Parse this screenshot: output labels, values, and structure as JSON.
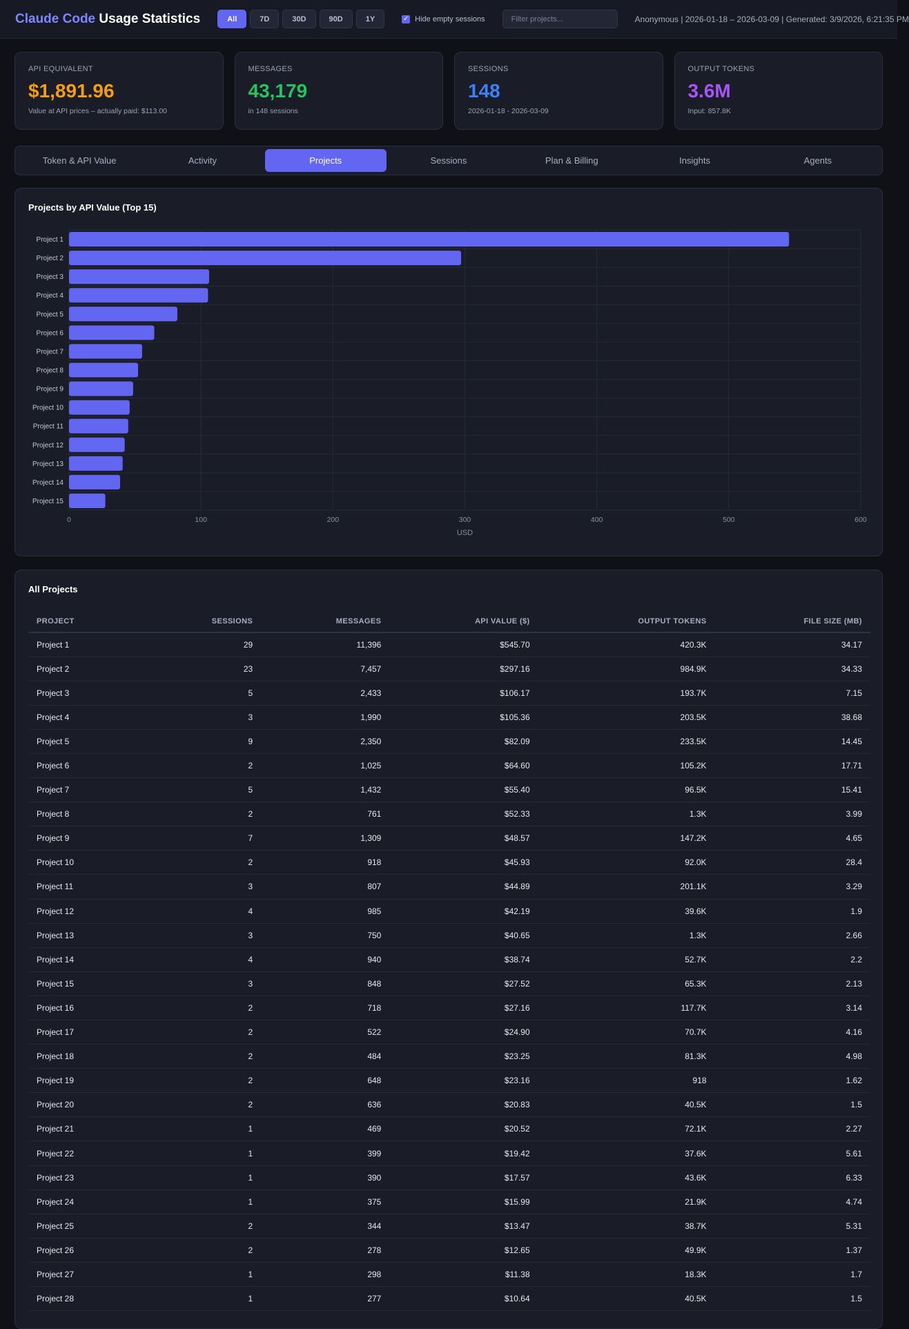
{
  "header": {
    "brand": "Claude Code",
    "title_rest": " Usage Statistics",
    "ranges": [
      "All",
      "7D",
      "30D",
      "90D",
      "1Y"
    ],
    "active_range": "All",
    "hide_empty_label": "Hide empty sessions",
    "hide_empty_checked": true,
    "filter_placeholder": "Filter projects...",
    "meta": "Anonymous | 2026-01-18 – 2026-03-09 | Generated: 3/9/2026, 6:21:35 PM"
  },
  "cards": [
    {
      "label": "API EQUIVALENT",
      "value": "$1,891.96",
      "sub": "Value at API prices – actually paid: $113.00",
      "color": "#f59e0b"
    },
    {
      "label": "MESSAGES",
      "value": "43,179",
      "sub": "in 148 sessions",
      "color": "#22c55e"
    },
    {
      "label": "SESSIONS",
      "value": "148",
      "sub": "2026-01-18 - 2026-03-09",
      "color": "#3b82f6"
    },
    {
      "label": "OUTPUT TOKENS",
      "value": "3.6M",
      "sub": "Input: 857.8K",
      "color": "#a855f7"
    }
  ],
  "tabs": [
    "Token & API Value",
    "Activity",
    "Projects",
    "Sessions",
    "Plan & Billing",
    "Insights",
    "Agents"
  ],
  "active_tab": "Projects",
  "chart_title": "Projects by API Value (Top 15)",
  "chart_data": {
    "type": "bar",
    "orientation": "horizontal",
    "title": "Projects by API Value (Top 15)",
    "categories": [
      "Project 1",
      "Project 2",
      "Project 3",
      "Project 4",
      "Project 5",
      "Project 6",
      "Project 7",
      "Project 8",
      "Project 9",
      "Project 10",
      "Project 11",
      "Project 12",
      "Project 13",
      "Project 14",
      "Project 15"
    ],
    "values": [
      545.7,
      297.16,
      106.17,
      105.36,
      82.09,
      64.6,
      55.4,
      52.33,
      48.57,
      45.93,
      44.89,
      42.19,
      40.65,
      38.74,
      27.52
    ],
    "xlabel": "USD",
    "ylabel": "",
    "xlim": [
      0,
      600
    ],
    "xticks": [
      0,
      100,
      200,
      300,
      400,
      500,
      600
    ],
    "grid": true,
    "bar_color": "#6366f1"
  },
  "table": {
    "title": "All Projects",
    "columns": [
      "PROJECT",
      "SESSIONS",
      "MESSAGES",
      "API VALUE ($)",
      "OUTPUT TOKENS",
      "FILE SIZE (MB)"
    ],
    "rows": [
      [
        "Project 1",
        "29",
        "11,396",
        "$545.70",
        "420.3K",
        "34.17"
      ],
      [
        "Project 2",
        "23",
        "7,457",
        "$297.16",
        "984.9K",
        "34.33"
      ],
      [
        "Project 3",
        "5",
        "2,433",
        "$106.17",
        "193.7K",
        "7.15"
      ],
      [
        "Project 4",
        "3",
        "1,990",
        "$105.36",
        "203.5K",
        "38.68"
      ],
      [
        "Project 5",
        "9",
        "2,350",
        "$82.09",
        "233.5K",
        "14.45"
      ],
      [
        "Project 6",
        "2",
        "1,025",
        "$64.60",
        "105.2K",
        "17.71"
      ],
      [
        "Project 7",
        "5",
        "1,432",
        "$55.40",
        "96.5K",
        "15.41"
      ],
      [
        "Project 8",
        "2",
        "761",
        "$52.33",
        "1.3K",
        "3.99"
      ],
      [
        "Project 9",
        "7",
        "1,309",
        "$48.57",
        "147.2K",
        "4.65"
      ],
      [
        "Project 10",
        "2",
        "918",
        "$45.93",
        "92.0K",
        "28.4"
      ],
      [
        "Project 11",
        "3",
        "807",
        "$44.89",
        "201.1K",
        "3.29"
      ],
      [
        "Project 12",
        "4",
        "985",
        "$42.19",
        "39.6K",
        "1.9"
      ],
      [
        "Project 13",
        "3",
        "750",
        "$40.65",
        "1.3K",
        "2.66"
      ],
      [
        "Project 14",
        "4",
        "940",
        "$38.74",
        "52.7K",
        "2.2"
      ],
      [
        "Project 15",
        "3",
        "848",
        "$27.52",
        "65.3K",
        "2.13"
      ],
      [
        "Project 16",
        "2",
        "718",
        "$27.16",
        "117.7K",
        "3.14"
      ],
      [
        "Project 17",
        "2",
        "522",
        "$24.90",
        "70.7K",
        "4.16"
      ],
      [
        "Project 18",
        "2",
        "484",
        "$23.25",
        "81.3K",
        "4.98"
      ],
      [
        "Project 19",
        "2",
        "648",
        "$23.16",
        "918",
        "1.62"
      ],
      [
        "Project 20",
        "2",
        "636",
        "$20.83",
        "40.5K",
        "1.5"
      ],
      [
        "Project 21",
        "1",
        "469",
        "$20.52",
        "72.1K",
        "2.27"
      ],
      [
        "Project 22",
        "1",
        "399",
        "$19.42",
        "37.6K",
        "5.61"
      ],
      [
        "Project 23",
        "1",
        "390",
        "$17.57",
        "43.6K",
        "6.33"
      ],
      [
        "Project 24",
        "1",
        "375",
        "$15.99",
        "21.9K",
        "4.74"
      ],
      [
        "Project 25",
        "2",
        "344",
        "$13.47",
        "38.7K",
        "5.31"
      ],
      [
        "Project 26",
        "2",
        "278",
        "$12.65",
        "49.9K",
        "1.37"
      ],
      [
        "Project 27",
        "1",
        "298",
        "$11.38",
        "18.3K",
        "1.7"
      ],
      [
        "Project 28",
        "1",
        "277",
        "$10.64",
        "40.5K",
        "1.5"
      ]
    ]
  }
}
